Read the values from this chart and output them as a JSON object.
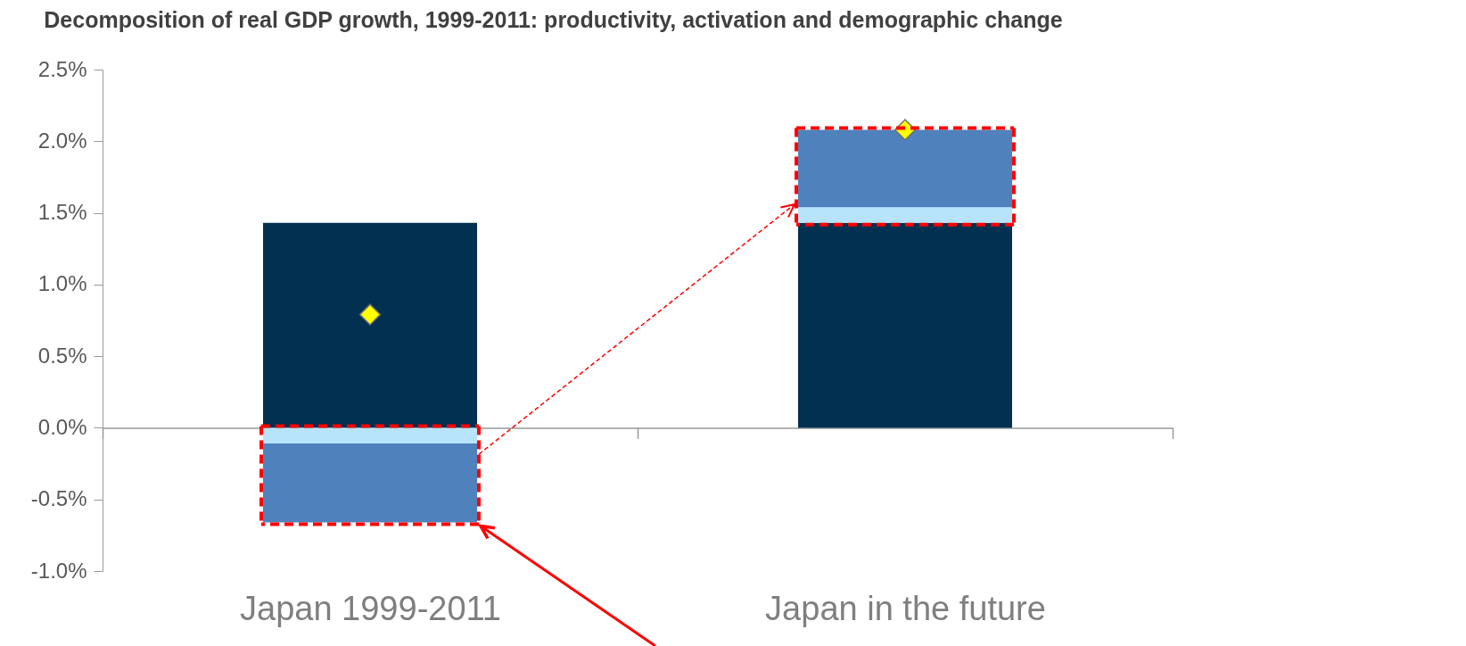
{
  "chart_data": {
    "type": "bar",
    "title": "Decomposition of real GDP growth, 1999-2011: productivity, activation and demographic change",
    "categories": [
      "Japan 1999-2011",
      "Japan in the future"
    ],
    "stacked": true,
    "series": [
      {
        "color": "#023050",
        "values": [
          1.43,
          1.43
        ]
      },
      {
        "color": "#b7e4fb",
        "values": [
          -0.11,
          0.11
        ]
      },
      {
        "color": "#4f81bd",
        "values": [
          -0.55,
          0.54
        ]
      },
      {
        "type": "scatter",
        "marker": "diamond",
        "color": "#ffff00",
        "values": [
          0.79,
          2.08
        ]
      }
    ],
    "ylim": [
      -1,
      2.5
    ],
    "yticks": [
      {
        "value": -1,
        "label": "-1.0%"
      },
      {
        "value": -0.5,
        "label": "-0.5%"
      },
      {
        "value": 0,
        "label": "0.0%"
      },
      {
        "value": 0.5,
        "label": "0.5%"
      },
      {
        "value": 1,
        "label": "1.0%"
      },
      {
        "value": 1.5,
        "label": "1.5%"
      },
      {
        "value": 2,
        "label": "2.0%"
      },
      {
        "value": 2.5,
        "label": "2.5%"
      }
    ]
  }
}
